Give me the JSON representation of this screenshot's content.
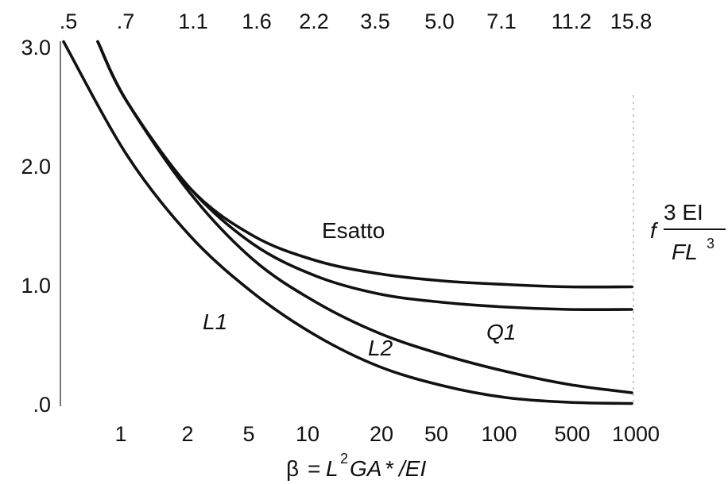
{
  "chart_data": {
    "type": "line",
    "title": "",
    "xlabel": "β = L²GA* /EI",
    "xlabel_parts": {
      "beta": "β",
      "eq": "=",
      "L": "L",
      "sup2": "2",
      "GA": "GA",
      "star": "*",
      "over": "/EI"
    },
    "ylabel_parts": {
      "f": "f",
      "num": "3 EI",
      "den": "FL",
      "den_sup": "3"
    },
    "x_tick_labels_bottom": [
      "1",
      "2",
      "5",
      "10",
      "20",
      "50",
      "100",
      "500",
      "1000"
    ],
    "x_tick_labels_top": [
      ".5",
      ".7",
      "1.1",
      "1.6",
      "2.2",
      "3.5",
      "5.0",
      "7.1",
      "11.2",
      "15.8"
    ],
    "y_tick_labels": [
      "3.0",
      "2.0",
      "1.0",
      ".0"
    ],
    "ylim": [
      0,
      3.0
    ],
    "grid": false,
    "x_positions": [
      0,
      1,
      2,
      3,
      4,
      5,
      6,
      7,
      8,
      9
    ],
    "series": [
      {
        "name": "Esatto",
        "values": [
          3.05,
          2.55,
          1.82,
          1.42,
          1.21,
          1.1,
          1.04,
          1.01,
          0.99,
          0.99
        ]
      },
      {
        "name": "Q1",
        "values": [
          3.05,
          2.55,
          1.82,
          1.35,
          1.08,
          0.93,
          0.86,
          0.82,
          0.8,
          0.8
        ]
      },
      {
        "name": "L2",
        "values": [
          3.05,
          2.55,
          1.78,
          1.22,
          0.86,
          0.6,
          0.42,
          0.28,
          0.17,
          0.1
        ]
      },
      {
        "name": "L1",
        "values": [
          3.05,
          2.1,
          1.42,
          0.94,
          0.58,
          0.32,
          0.16,
          0.06,
          0.02,
          0.01
        ]
      }
    ]
  }
}
